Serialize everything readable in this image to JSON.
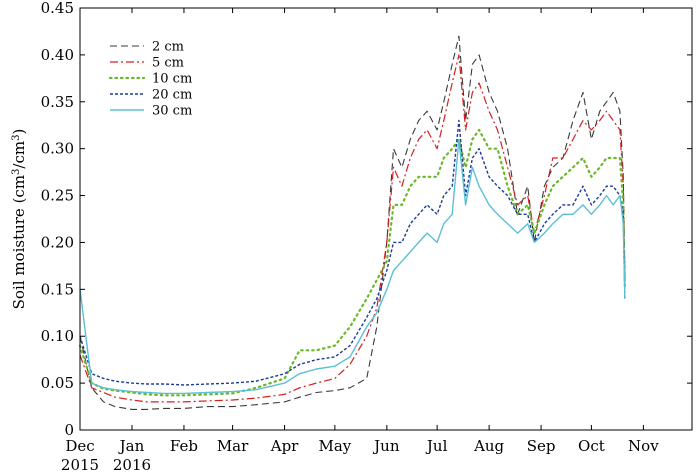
{
  "chart_data": {
    "type": "line",
    "title": "",
    "xlabel": "",
    "ylabel": "Soil moisture (cm³/cm³)",
    "ylabel_parts": {
      "main": "Soil moisture (cm",
      "sup1": "3",
      "mid": "/cm",
      "sup2": "3",
      "end": ")"
    },
    "ylim": [
      0,
      0.45
    ],
    "yticks": [
      0,
      0.05,
      0.1,
      0.15,
      0.2,
      0.25,
      0.3,
      0.35,
      0.4,
      0.45
    ],
    "ytick_labels": [
      "0",
      "0.05",
      "0.10",
      "0.15",
      "0.20",
      "0.25",
      "0.30",
      "0.35",
      "0.40",
      "0.45"
    ],
    "xlim": [
      "2015-12-01",
      "2016-11-30"
    ],
    "xticks": [
      {
        "date": "2015-12-01",
        "label": "Dec",
        "year": "2015"
      },
      {
        "date": "2016-01-01",
        "label": "Jan",
        "year": "2016"
      },
      {
        "date": "2016-02-01",
        "label": "Feb",
        "year": ""
      },
      {
        "date": "2016-03-01",
        "label": "Mar",
        "year": ""
      },
      {
        "date": "2016-04-01",
        "label": "Apr",
        "year": ""
      },
      {
        "date": "2016-05-01",
        "label": "May",
        "year": ""
      },
      {
        "date": "2016-06-01",
        "label": "Jun",
        "year": ""
      },
      {
        "date": "2016-07-01",
        "label": "Jul",
        "year": ""
      },
      {
        "date": "2016-08-01",
        "label": "Aug",
        "year": ""
      },
      {
        "date": "2016-09-01",
        "label": "Sep",
        "year": ""
      },
      {
        "date": "2016-10-01",
        "label": "Oct",
        "year": ""
      },
      {
        "date": "2016-11-01",
        "label": "Nov",
        "year": ""
      }
    ],
    "grid": false,
    "legend_position": "top-left",
    "x": [
      "2015-12-01",
      "2015-12-08",
      "2015-12-15",
      "2015-12-22",
      "2016-01-01",
      "2016-01-10",
      "2016-01-20",
      "2016-02-01",
      "2016-02-15",
      "2016-03-01",
      "2016-03-15",
      "2016-04-01",
      "2016-04-10",
      "2016-04-20",
      "2016-05-01",
      "2016-05-10",
      "2016-05-20",
      "2016-05-26",
      "2016-06-01",
      "2016-06-05",
      "2016-06-10",
      "2016-06-15",
      "2016-06-20",
      "2016-06-25",
      "2016-07-01",
      "2016-07-05",
      "2016-07-10",
      "2016-07-14",
      "2016-07-18",
      "2016-07-22",
      "2016-07-26",
      "2016-08-01",
      "2016-08-06",
      "2016-08-12",
      "2016-08-18",
      "2016-08-24",
      "2016-08-28",
      "2016-09-03",
      "2016-09-08",
      "2016-09-14",
      "2016-09-20",
      "2016-09-26",
      "2016-10-01",
      "2016-10-06",
      "2016-10-10",
      "2016-10-14",
      "2016-10-18",
      "2016-10-20",
      "2016-10-21"
    ],
    "series": [
      {
        "name": "2 cm",
        "color": "#3a3a3a",
        "style": "dashed",
        "values": [
          0.1,
          0.045,
          0.03,
          0.025,
          0.022,
          0.022,
          0.023,
          0.023,
          0.025,
          0.025,
          0.027,
          0.03,
          0.035,
          0.04,
          0.042,
          0.045,
          0.055,
          0.11,
          0.2,
          0.3,
          0.28,
          0.31,
          0.33,
          0.34,
          0.32,
          0.35,
          0.39,
          0.42,
          0.33,
          0.39,
          0.4,
          0.36,
          0.34,
          0.3,
          0.23,
          0.26,
          0.2,
          0.26,
          0.28,
          0.29,
          0.33,
          0.36,
          0.31,
          0.34,
          0.35,
          0.36,
          0.34,
          0.27,
          0.16
        ]
      },
      {
        "name": "5 cm",
        "color": "#d42020",
        "style": "dashdot",
        "values": [
          0.08,
          0.045,
          0.04,
          0.035,
          0.032,
          0.03,
          0.03,
          0.03,
          0.031,
          0.032,
          0.034,
          0.038,
          0.045,
          0.05,
          0.055,
          0.07,
          0.1,
          0.13,
          0.2,
          0.28,
          0.26,
          0.29,
          0.31,
          0.32,
          0.3,
          0.33,
          0.37,
          0.4,
          0.32,
          0.36,
          0.37,
          0.34,
          0.32,
          0.28,
          0.24,
          0.25,
          0.21,
          0.25,
          0.29,
          0.29,
          0.31,
          0.33,
          0.32,
          0.33,
          0.34,
          0.33,
          0.32,
          0.26,
          0.16
        ]
      },
      {
        "name": "10 cm",
        "color": "#6ab82a",
        "style": "dotted",
        "values": [
          0.09,
          0.05,
          0.044,
          0.042,
          0.04,
          0.038,
          0.037,
          0.037,
          0.038,
          0.039,
          0.045,
          0.055,
          0.085,
          0.085,
          0.09,
          0.11,
          0.14,
          0.16,
          0.18,
          0.24,
          0.24,
          0.26,
          0.27,
          0.27,
          0.27,
          0.29,
          0.3,
          0.31,
          0.28,
          0.31,
          0.32,
          0.3,
          0.3,
          0.26,
          0.23,
          0.24,
          0.21,
          0.24,
          0.26,
          0.27,
          0.28,
          0.29,
          0.27,
          0.28,
          0.29,
          0.29,
          0.29,
          0.24,
          0.15
        ]
      },
      {
        "name": "20 cm",
        "color": "#1b3a9a",
        "style": "shortdash",
        "values": [
          0.1,
          0.06,
          0.055,
          0.052,
          0.05,
          0.049,
          0.049,
          0.048,
          0.049,
          0.05,
          0.052,
          0.06,
          0.07,
          0.075,
          0.078,
          0.09,
          0.12,
          0.14,
          0.17,
          0.2,
          0.2,
          0.22,
          0.23,
          0.24,
          0.23,
          0.25,
          0.26,
          0.33,
          0.25,
          0.29,
          0.3,
          0.27,
          0.26,
          0.25,
          0.23,
          0.23,
          0.2,
          0.22,
          0.23,
          0.24,
          0.24,
          0.26,
          0.24,
          0.25,
          0.26,
          0.26,
          0.25,
          0.23,
          0.14
        ]
      },
      {
        "name": "30 cm",
        "color": "#5bbfd6",
        "style": "solid",
        "values": [
          0.15,
          0.05,
          0.045,
          0.043,
          0.041,
          0.04,
          0.039,
          0.039,
          0.04,
          0.041,
          0.043,
          0.05,
          0.06,
          0.065,
          0.068,
          0.078,
          0.11,
          0.125,
          0.15,
          0.17,
          0.18,
          0.19,
          0.2,
          0.21,
          0.2,
          0.22,
          0.23,
          0.31,
          0.24,
          0.28,
          0.26,
          0.24,
          0.23,
          0.22,
          0.21,
          0.22,
          0.2,
          0.21,
          0.22,
          0.23,
          0.23,
          0.24,
          0.23,
          0.24,
          0.25,
          0.24,
          0.25,
          0.22,
          0.14
        ]
      }
    ]
  }
}
